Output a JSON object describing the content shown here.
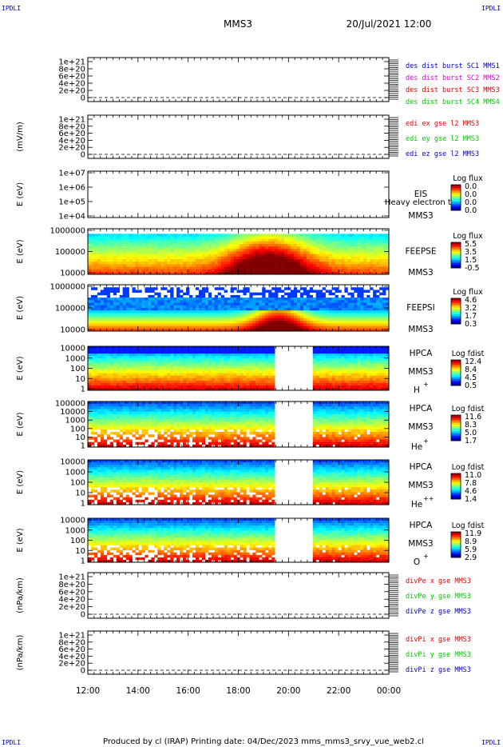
{
  "corner_label": "IPDLI",
  "header": {
    "mission": "MMS3",
    "datetime": "20/Jul/2021 12:00"
  },
  "footer": {
    "text": "Produced by cl (IRAP)   Printing date: 04/Dec/2023   mms_mms3_srvy_vue_web2.cl"
  },
  "colors": {
    "red": "#dd0000",
    "green": "#00cc00",
    "blue": "#0000cc",
    "magenta": "#dd00dd"
  },
  "chart_data": [
    {
      "type": "line",
      "id": "p1",
      "ylabel": "",
      "yticks": [
        "1e+21",
        "8e+20",
        "6e+20",
        "4e+20",
        "2e+20",
        "0"
      ],
      "ylim": [
        0,
        1e+21
      ],
      "legend": [
        {
          "text": "des dist burst SC1 MMS1",
          "color": "#0000cc"
        },
        {
          "text": "des dist burst SC2 MMS2",
          "color": "#dd00dd"
        },
        {
          "text": "des dist burst SC3 MMS3",
          "color": "#dd0000"
        },
        {
          "text": "des dist burst SC4 MMS4",
          "color": "#00cc00"
        }
      ]
    },
    {
      "type": "line",
      "id": "p2",
      "ylabel": "(mV/m)",
      "yticks": [
        "1e+21",
        "8e+20",
        "6e+20",
        "4e+20",
        "2e+20",
        "0"
      ],
      "ylim": [
        0,
        1e+21
      ],
      "legend": [
        {
          "text": "edi ex gse l2 MMS3",
          "color": "#dd0000"
        },
        {
          "text": "edi ey gse l2 MMS3",
          "color": "#00cc00"
        },
        {
          "text": "edi ez gse l2 MMS3",
          "color": "#0000cc"
        }
      ]
    },
    {
      "type": "heatmap",
      "id": "p3",
      "ylabel": "E (eV)",
      "yticks": [
        "1e+07",
        "1e+06",
        "1e+05",
        "1e+04"
      ],
      "yscale": "log",
      "ylim": [
        10000,
        10000000
      ],
      "inst": "EIS",
      "inst2": "MMS3",
      "overlap_text": "Heavy electron to",
      "colorbar": {
        "title": "Log flux",
        "ticks": [
          "0.0",
          "0.0",
          "0.0",
          "0.0"
        ]
      },
      "data_present": false
    },
    {
      "type": "heatmap",
      "id": "p4",
      "ylabel": "E (eV)",
      "yticks": [
        "1000000",
        "100000",
        "10000"
      ],
      "yscale": "log",
      "ylim": [
        10000,
        1000000
      ],
      "inst": "FEEPSE",
      "inst2": "MMS3",
      "colorbar": {
        "title": "Log flux",
        "ticks": [
          "5.5",
          "3.5",
          "1.5",
          "-0.5"
        ]
      }
    },
    {
      "type": "heatmap",
      "id": "p5",
      "ylabel": "E (eV)",
      "yticks": [
        "1000000",
        "100000",
        "10000"
      ],
      "yscale": "log",
      "ylim": [
        10000,
        1000000
      ],
      "inst": "FEEPSI",
      "inst2": "MMS3",
      "colorbar": {
        "title": "Log flux",
        "ticks": [
          "4.6",
          "3.2",
          "1.7",
          "0.3"
        ]
      }
    },
    {
      "type": "heatmap",
      "id": "p6",
      "ylabel": "E (eV)",
      "yticks": [
        "10000",
        "1000",
        "100",
        "10",
        "1"
      ],
      "yscale": "log",
      "ylim": [
        1,
        40000
      ],
      "inst": "HPCA",
      "inst2": "MMS3",
      "species": "H",
      "charge": "+",
      "colorbar": {
        "title": "Log fdist",
        "ticks": [
          "12.4",
          "8.4",
          "4.5",
          "0.5"
        ]
      },
      "gap": [
        "19:25",
        "20:55"
      ]
    },
    {
      "type": "heatmap",
      "id": "p7",
      "ylabel": "E (eV)",
      "yticks": [
        "100000",
        "10000",
        "1000",
        "100",
        "10",
        "1"
      ],
      "yscale": "log",
      "ylim": [
        1,
        100000
      ],
      "inst": "HPCA",
      "inst2": "MMS3",
      "species": "He",
      "charge": "+",
      "colorbar": {
        "title": "Log fdist",
        "ticks": [
          "11.6",
          "8.3",
          "5.0",
          "1.7"
        ]
      },
      "gap": [
        "19:25",
        "20:55"
      ]
    },
    {
      "type": "heatmap",
      "id": "p8",
      "ylabel": "E (eV)",
      "yticks": [
        "10000",
        "1000",
        "100",
        "10",
        "1"
      ],
      "yscale": "log",
      "ylim": [
        1,
        40000
      ],
      "inst": "HPCA",
      "inst2": "MMS3",
      "species": "He",
      "charge": "++",
      "colorbar": {
        "title": "Log fdist",
        "ticks": [
          "11.0",
          "7.8",
          "4.6",
          "1.4"
        ]
      },
      "gap": [
        "19:25",
        "20:55"
      ]
    },
    {
      "type": "heatmap",
      "id": "p9",
      "ylabel": "E (eV)",
      "yticks": [
        "10000",
        "1000",
        "100",
        "10",
        "1"
      ],
      "yscale": "log",
      "ylim": [
        1,
        40000
      ],
      "inst": "HPCA",
      "inst2": "MMS3",
      "species": "O",
      "charge": "+",
      "colorbar": {
        "title": "Log fdist",
        "ticks": [
          "11.9",
          "8.9",
          "5.9",
          "2.9"
        ]
      },
      "gap": [
        "19:25",
        "20:55"
      ]
    },
    {
      "type": "line",
      "id": "p10",
      "ylabel": "(nPa/km)",
      "yticks": [
        "1e+21",
        "8e+20",
        "6e+20",
        "4e+20",
        "2e+20",
        "0"
      ],
      "ylim": [
        0,
        1e+21
      ],
      "legend": [
        {
          "text": "divPe x gse MMS3",
          "color": "#dd0000"
        },
        {
          "text": "divPe y gse MMS3",
          "color": "#00cc00"
        },
        {
          "text": "divPe z gse MMS3",
          "color": "#0000cc"
        }
      ]
    },
    {
      "type": "line",
      "id": "p11",
      "ylabel": "(nPa/km)",
      "yticks": [
        "1e+21",
        "8e+20",
        "6e+20",
        "4e+20",
        "2e+20",
        "0"
      ],
      "ylim": [
        0,
        1e+21
      ],
      "legend": [
        {
          "text": "divPi x gse MMS3",
          "color": "#dd0000"
        },
        {
          "text": "divPi y gse MMS3",
          "color": "#00cc00"
        },
        {
          "text": "divPi z gse MMS3",
          "color": "#0000cc"
        }
      ]
    }
  ],
  "xaxis": {
    "ticks": [
      "12:00",
      "14:00",
      "16:00",
      "18:00",
      "20:00",
      "22:00",
      "00:00"
    ]
  }
}
